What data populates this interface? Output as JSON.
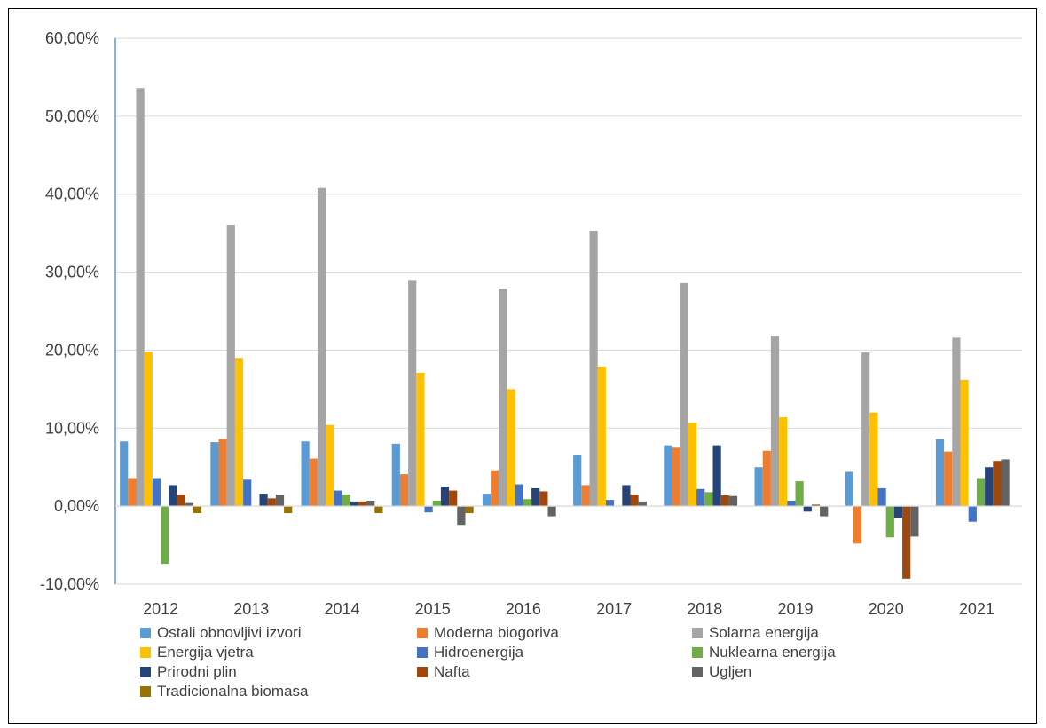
{
  "chart_data": {
    "type": "bar",
    "title": "",
    "xlabel": "",
    "ylabel": "",
    "categories": [
      "2012",
      "2013",
      "2014",
      "2015",
      "2016",
      "2017",
      "2018",
      "2019",
      "2020",
      "2021"
    ],
    "ylim": [
      -0.1,
      0.6
    ],
    "yticks": [
      -0.1,
      0.0,
      0.1,
      0.2,
      0.3,
      0.4,
      0.5,
      0.6
    ],
    "ytick_labels": [
      "-10,00%",
      "0,00%",
      "10,00%",
      "20,00%",
      "30,00%",
      "40,00%",
      "50,00%",
      "60,00%"
    ],
    "grid": true,
    "legend_position": "bottom",
    "series": [
      {
        "name": "Ostali obnovljivi izvori",
        "color": "#5B9BD5",
        "values": [
          0.083,
          0.082,
          0.083,
          0.08,
          0.016,
          0.066,
          0.078,
          0.05,
          0.044,
          0.086
        ]
      },
      {
        "name": "Moderna biogoriva",
        "color": "#ED7D31",
        "values": [
          0.036,
          0.086,
          0.061,
          0.041,
          0.046,
          0.027,
          0.075,
          0.071,
          -0.048,
          0.07
        ]
      },
      {
        "name": "Solarna energija",
        "color": "#A5A5A5",
        "values": [
          0.536,
          0.361,
          0.408,
          0.29,
          0.279,
          0.353,
          0.286,
          0.218,
          0.197,
          0.216
        ]
      },
      {
        "name": "Energija vjetra",
        "color": "#FFC000",
        "values": [
          0.198,
          0.19,
          0.104,
          0.171,
          0.15,
          0.179,
          0.107,
          0.114,
          0.12,
          0.162
        ]
      },
      {
        "name": "Hidroenergija",
        "color": "#4472C4",
        "values": [
          0.036,
          0.034,
          0.02,
          -0.008,
          0.028,
          0.008,
          0.022,
          0.007,
          0.023,
          -0.02
        ]
      },
      {
        "name": "Nuklearna energija",
        "color": "#70AD47",
        "values": [
          -0.074,
          0.0,
          0.015,
          0.007,
          0.009,
          0.0,
          0.018,
          0.032,
          -0.04,
          0.036
        ]
      },
      {
        "name": "Prirodni plin",
        "color": "#264478",
        "values": [
          0.027,
          0.016,
          0.006,
          0.025,
          0.023,
          0.027,
          0.078,
          -0.007,
          -0.015,
          0.05
        ]
      },
      {
        "name": "Nafta",
        "color": "#9E480E",
        "values": [
          0.015,
          0.01,
          0.006,
          0.02,
          0.019,
          0.015,
          0.014,
          0.002,
          -0.093,
          0.058
        ]
      },
      {
        "name": "Ugljen",
        "color": "#636363",
        "values": [
          0.004,
          0.015,
          0.007,
          -0.024,
          -0.013,
          0.006,
          0.013,
          -0.013,
          -0.039,
          0.06
        ]
      },
      {
        "name": "Tradicionalna biomasa",
        "color": "#997300",
        "values": [
          -0.009,
          -0.009,
          -0.009,
          -0.009,
          0.0,
          0.0,
          0.0,
          0.0,
          0.0,
          0.0
        ]
      }
    ]
  }
}
